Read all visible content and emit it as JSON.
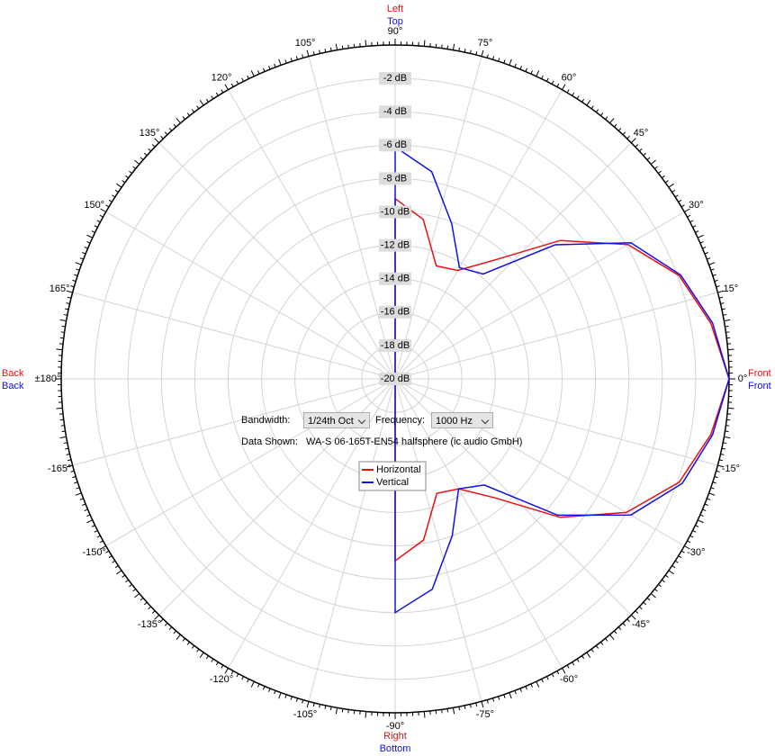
{
  "chart_data": {
    "type": "polar",
    "rlim": [
      -20,
      0
    ],
    "rticks": [
      {
        "value": -2,
        "label": "-2 dB"
      },
      {
        "value": -4,
        "label": "-4 dB"
      },
      {
        "value": -6,
        "label": "-6 dB"
      },
      {
        "value": -8,
        "label": "-8 dB"
      },
      {
        "value": -10,
        "label": "-10 dB"
      },
      {
        "value": -12,
        "label": "-12 dB"
      },
      {
        "value": -14,
        "label": "-14 dB"
      },
      {
        "value": -16,
        "label": "-16 dB"
      },
      {
        "value": -18,
        "label": "-18 dB"
      },
      {
        "value": -20,
        "label": "-20 dB"
      }
    ],
    "angle_ticks": [
      {
        "value": 0,
        "label": "0°"
      },
      {
        "value": 15,
        "label": "15°"
      },
      {
        "value": 30,
        "label": "30°"
      },
      {
        "value": 45,
        "label": "45°"
      },
      {
        "value": 60,
        "label": "60°"
      },
      {
        "value": 75,
        "label": "75°"
      },
      {
        "value": 90,
        "label": "90°"
      },
      {
        "value": 105,
        "label": "105°"
      },
      {
        "value": 120,
        "label": "120°"
      },
      {
        "value": 135,
        "label": "135°"
      },
      {
        "value": 150,
        "label": "150°"
      },
      {
        "value": 165,
        "label": "165°"
      },
      {
        "value": 180,
        "label": "±180°"
      },
      {
        "value": -165,
        "label": "-165°"
      },
      {
        "value": -150,
        "label": "-150°"
      },
      {
        "value": -135,
        "label": "-135°"
      },
      {
        "value": -120,
        "label": "-120°"
      },
      {
        "value": -105,
        "label": "-105°"
      },
      {
        "value": -90,
        "label": "-90°"
      },
      {
        "value": -75,
        "label": "-75°"
      },
      {
        "value": -60,
        "label": "-60°"
      },
      {
        "value": -45,
        "label": "-45°"
      },
      {
        "value": -30,
        "label": "-30°"
      },
      {
        "value": -15,
        "label": "-15°"
      }
    ],
    "theta": [
      90,
      80,
      70,
      60,
      50,
      40,
      30,
      20,
      10,
      0,
      -10,
      -20,
      -30,
      -40,
      -50,
      -60,
      -70,
      -80,
      -90
    ],
    "series": [
      {
        "name": "Horizontal",
        "color": "#e81010",
        "direction_labels": {
          "top": "Left",
          "bottom": "Right",
          "right": "Front",
          "left": "Back"
        },
        "values": [
          -9.2,
          -10.3,
          -12.8,
          -12.5,
          -10.7,
          -7.1,
          -3.9,
          -1.9,
          -0.8,
          0,
          -0.8,
          -1.9,
          -4.0,
          -7.1,
          -10.7,
          -12.4,
          -12.7,
          -10.2,
          -9.1
        ]
      },
      {
        "name": "Vertical",
        "color": "#1010e8",
        "direction_labels": {
          "top": "Top",
          "bottom": "Bottom",
          "right": "Front",
          "left": "Back"
        },
        "values": [
          -6.1,
          -7.4,
          -10.1,
          -12.3,
          -11.8,
          -7.5,
          -3.7,
          -1.8,
          -0.7,
          0,
          -0.7,
          -1.7,
          -3.7,
          -7.3,
          -11.7,
          -12.4,
          -10.0,
          -7.2,
          -6.0
        ]
      }
    ]
  },
  "controls": {
    "bandwidth_label": "Bandwidth:",
    "bandwidth": "1/24th Oct",
    "frequency_label": "Frequency:",
    "frequency": "1000 Hz",
    "data_shown_label": "Data Shown:",
    "data_shown": "WA-S 06-165T-EN54 halfsphere (ic audio GmbH)"
  }
}
